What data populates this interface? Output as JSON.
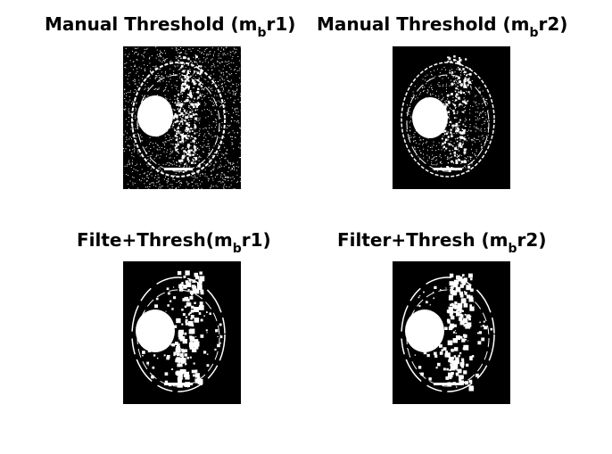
{
  "figure": {
    "panels": [
      {
        "id": "p1",
        "title_pre": "Manual Threshold (m",
        "title_sub": "b",
        "title_post": "r1)",
        "style": "noisy"
      },
      {
        "id": "p2",
        "title_pre": "Manual Threshold (m",
        "title_sub": "b",
        "title_post": "r2)",
        "style": "sparse"
      },
      {
        "id": "p3",
        "title_pre": "Filte+Thresh(m",
        "title_sub": "b",
        "title_post": "r1)",
        "style": "filtered"
      },
      {
        "id": "p4",
        "title_pre": "Filter+Thresh (m",
        "title_sub": "b",
        "title_post": "r2)",
        "style": "filtered2"
      }
    ]
  },
  "colors": {
    "background": "#ffffff",
    "image_bg": "#000000",
    "foreground": "#ffffff",
    "title": "#000000"
  }
}
